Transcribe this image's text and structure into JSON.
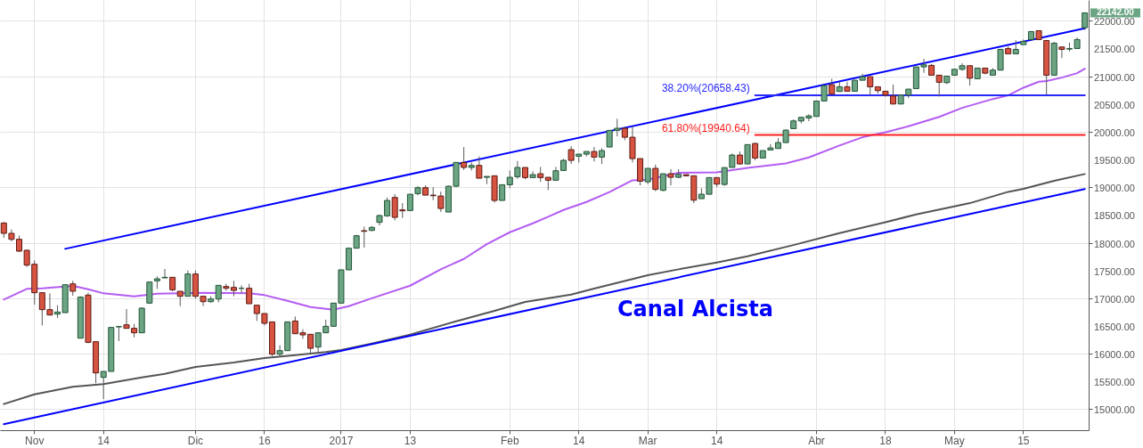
{
  "chart_data": {
    "type": "candlestick",
    "categories": [
      null,
      null,
      null,
      null,
      "Nov",
      null,
      null,
      null,
      null,
      null,
      null,
      null,
      null,
      "14",
      null,
      null,
      null,
      null,
      null,
      null,
      null,
      null,
      null,
      null,
      null,
      "Dic",
      null,
      null,
      null,
      null,
      null,
      null,
      null,
      null,
      "16",
      null,
      null,
      null,
      null,
      null,
      null,
      null,
      null,
      null,
      "2017",
      null,
      null,
      null,
      null,
      null,
      null,
      null,
      null,
      "13",
      null,
      null,
      null,
      null,
      null,
      null,
      null,
      null,
      null,
      null,
      null,
      null,
      "Feb",
      null,
      null,
      null,
      null,
      null,
      null,
      null,
      null,
      "14",
      null,
      null,
      null,
      null,
      null,
      null,
      null,
      null,
      "Mar",
      null,
      null,
      null,
      null,
      null,
      null,
      null,
      null,
      "14",
      null,
      null,
      null,
      null,
      null,
      null,
      null,
      null,
      null,
      null,
      null,
      null,
      "Abr",
      null,
      null,
      null,
      null,
      null,
      null,
      null,
      null,
      "18",
      null,
      null,
      null,
      null,
      null,
      null,
      null,
      null,
      "May",
      null,
      null,
      null,
      null,
      null,
      null,
      null,
      null,
      "15",
      null,
      null,
      null,
      null,
      null,
      null,
      null,
      null
    ],
    "ohlc": [
      [
        18356,
        18372,
        18089,
        18169
      ],
      [
        18169,
        18238,
        18024,
        18062
      ],
      [
        18062,
        18131,
        17832,
        17848
      ],
      [
        17864,
        17875,
        17564,
        17596
      ],
      [
        17612,
        17682,
        16885,
        17099
      ],
      [
        17099,
        17099,
        16510,
        16794
      ],
      [
        16794,
        17088,
        16687,
        16698
      ],
      [
        16714,
        16874,
        16644,
        16751
      ],
      [
        16740,
        17243,
        16740,
        17243
      ],
      [
        17259,
        17313,
        17045,
        17126
      ],
      [
        16280,
        17035,
        16280,
        17019
      ],
      [
        17056,
        17099,
        16189,
        16205
      ],
      [
        16216,
        16216,
        15467,
        15654
      ],
      [
        15574,
        15681,
        15183,
        15681
      ],
      [
        15681,
        16473,
        15681,
        16473
      ],
      [
        16484,
        16489,
        16226,
        16489
      ],
      [
        16521,
        16805,
        16457,
        16457
      ],
      [
        16457,
        16537,
        16296,
        16377
      ],
      [
        16377,
        16832,
        16377,
        16821
      ],
      [
        16912,
        17291,
        16912,
        17291
      ],
      [
        17313,
        17393,
        17168,
        17350
      ],
      [
        17366,
        17527,
        17366,
        17377
      ],
      [
        17377,
        17377,
        17125,
        17152
      ],
      [
        17125,
        17125,
        16858,
        17035
      ],
      [
        17035,
        17500,
        17035,
        17436
      ],
      [
        17436,
        17500,
        16992,
        17035
      ],
      [
        17035,
        17035,
        16858,
        16938
      ],
      [
        16938,
        17035,
        16922,
        16986
      ],
      [
        16986,
        17232,
        16927,
        17232
      ],
      [
        17211,
        17259,
        17136,
        17179
      ],
      [
        17195,
        17313,
        17035,
        17141
      ],
      [
        17179,
        17232,
        17088,
        17179
      ],
      [
        17179,
        17259,
        16901,
        16901
      ],
      [
        16874,
        16874,
        16590,
        16724
      ],
      [
        16724,
        16724,
        16510,
        16548
      ],
      [
        16574,
        16574,
        15959,
        15991
      ],
      [
        15991,
        16152,
        15949,
        16055
      ],
      [
        16055,
        16574,
        16055,
        16574
      ],
      [
        16590,
        16671,
        16360,
        16360
      ],
      [
        16377,
        16441,
        16270,
        16339
      ],
      [
        16350,
        16350,
        16018,
        16098
      ],
      [
        16120,
        16377,
        16029,
        16377
      ],
      [
        16377,
        16612,
        16377,
        16494
      ],
      [
        16494,
        16912,
        16494,
        16912
      ],
      [
        16912,
        17511,
        16912,
        17511
      ],
      [
        17511,
        17901,
        17511,
        17901
      ],
      [
        17901,
        18142,
        17901,
        18126
      ],
      [
        18217,
        18292,
        17912,
        18206
      ],
      [
        18222,
        18302,
        18206,
        18276
      ],
      [
        18367,
        18506,
        18313,
        18490
      ],
      [
        18484,
        18815,
        18467,
        18762
      ],
      [
        18815,
        18874,
        18403,
        18457
      ],
      [
        18591,
        18714,
        18446,
        18575
      ],
      [
        18580,
        18874,
        18580,
        18874
      ],
      [
        18885,
        19018,
        18853,
        18992
      ],
      [
        18992,
        19034,
        18858,
        18858
      ],
      [
        18858,
        19002,
        18767,
        18847
      ],
      [
        18842,
        18922,
        18553,
        18617
      ],
      [
        18553,
        19029,
        18553,
        19018
      ],
      [
        19018,
        19447,
        19002,
        19447
      ],
      [
        19447,
        19725,
        19313,
        19356
      ],
      [
        19356,
        19447,
        19302,
        19393
      ],
      [
        19393,
        19554,
        19163,
        19163
      ],
      [
        19179,
        19195,
        19056,
        19195
      ],
      [
        19206,
        19206,
        18724,
        18762
      ],
      [
        18762,
        19045,
        18762,
        19045
      ],
      [
        19045,
        19302,
        18981,
        19179
      ],
      [
        19190,
        19473,
        19152,
        19356
      ],
      [
        19356,
        19356,
        19142,
        19174
      ],
      [
        19174,
        19286,
        19174,
        19227
      ],
      [
        19243,
        19366,
        19099,
        19174
      ],
      [
        19179,
        19179,
        18949,
        19126
      ],
      [
        19126,
        19366,
        19126,
        19297
      ],
      [
        19302,
        19511,
        19302,
        19484
      ],
      [
        19677,
        19741,
        19420,
        19484
      ],
      [
        19559,
        19597,
        19447,
        19597
      ],
      [
        19596,
        19644,
        19554,
        19644
      ],
      [
        19644,
        19725,
        19463,
        19543
      ],
      [
        19543,
        19703,
        19420,
        19660
      ],
      [
        19725,
        20024,
        19725,
        20024
      ],
      [
        20024,
        20233,
        19917,
        20062
      ],
      [
        20062,
        20088,
        19848,
        19901
      ],
      [
        19901,
        20099,
        19447,
        19516
      ],
      [
        19516,
        19516,
        19034,
        19109
      ],
      [
        19098,
        19340,
        19056,
        19340
      ],
      [
        19340,
        19409,
        18928,
        18961
      ],
      [
        18944,
        19243,
        18928,
        19243
      ],
      [
        19243,
        19324,
        19034,
        19179
      ],
      [
        19179,
        19324,
        19163,
        19233
      ],
      [
        19227,
        19233,
        19206,
        19206
      ],
      [
        19206,
        19206,
        18714,
        18767
      ],
      [
        18794,
        18981,
        18794,
        18874
      ],
      [
        18874,
        19174,
        18874,
        19174
      ],
      [
        19174,
        19174,
        19002,
        19056
      ],
      [
        19050,
        19354,
        19024,
        19354
      ],
      [
        19356,
        19607,
        19356,
        19580
      ],
      [
        19580,
        19644,
        19404,
        19420
      ],
      [
        19420,
        19768,
        19420,
        19768
      ],
      [
        19788,
        19805,
        19484,
        19526
      ],
      [
        19526,
        19660,
        19526,
        19660
      ],
      [
        19671,
        19778,
        19671,
        19708
      ],
      [
        19698,
        19885,
        19698,
        19805
      ],
      [
        19805,
        20045,
        19805,
        20029
      ],
      [
        20056,
        20222,
        20056,
        20195
      ],
      [
        20195,
        20259,
        20152,
        20259
      ],
      [
        20248,
        20313,
        20190,
        20286
      ],
      [
        20275,
        20554,
        20275,
        20554
      ],
      [
        20554,
        20832,
        20554,
        20832
      ],
      [
        20848,
        20955,
        20677,
        20677
      ],
      [
        20725,
        20901,
        20725,
        20811
      ],
      [
        20811,
        20901,
        20730,
        20730
      ],
      [
        20730,
        20928,
        20730,
        20928
      ],
      [
        20928,
        21046,
        20928,
        20992
      ],
      [
        20992,
        20992,
        20660,
        20810
      ],
      [
        20810,
        20810,
        20687,
        20741
      ],
      [
        20730,
        20730,
        20633,
        20660
      ],
      [
        20644,
        20848,
        20500,
        20500
      ],
      [
        20500,
        20660,
        20500,
        20660
      ],
      [
        20660,
        20768,
        20607,
        20768
      ],
      [
        20778,
        21169,
        20778,
        21169
      ],
      [
        21169,
        21313,
        21062,
        21206
      ],
      [
        21196,
        21222,
        21019,
        21019
      ],
      [
        21019,
        21019,
        20634,
        20891
      ],
      [
        20885,
        21002,
        20858,
        21002
      ],
      [
        21019,
        21125,
        21019,
        21125
      ],
      [
        21125,
        21233,
        21099,
        21190
      ],
      [
        21190,
        21190,
        20831,
        20965
      ],
      [
        20955,
        21147,
        20955,
        21147
      ],
      [
        21147,
        21147,
        21035,
        21056
      ],
      [
        21019,
        21147,
        21019,
        21110
      ],
      [
        21110,
        21484,
        21110,
        21484
      ],
      [
        21500,
        21543,
        21404,
        21404
      ],
      [
        21404,
        21650,
        21404,
        21484
      ],
      [
        21570,
        21661,
        21570,
        21628
      ],
      [
        21661,
        21805,
        21661,
        21805
      ],
      [
        21821,
        21821,
        21650,
        21661
      ],
      [
        21644,
        21644,
        20671,
        21019
      ],
      [
        21019,
        21618,
        21019,
        21596
      ],
      [
        21527,
        21527,
        21329,
        21484
      ],
      [
        21489,
        21607,
        21447,
        21500
      ],
      [
        21500,
        21698,
        21500,
        21661
      ],
      [
        21875,
        22142,
        21832,
        22142
      ]
    ],
    "series": [
      {
        "type": "line",
        "color": "#b35cf2",
        "values": [
          16976,
          null,
          null,
          17168,
          null,
          17179,
          null,
          null,
          null,
          17222,
          null,
          17163,
          null,
          17088,
          null,
          null,
          null,
          17035,
          null,
          null,
          17083,
          null,
          null,
          17088,
          null,
          null,
          17099,
          null,
          null,
          null,
          null,
          null,
          17088,
          null,
          17056,
          null,
          null,
          16954,
          null,
          null,
          16842,
          null,
          null,
          16794,
          null,
          16858,
          null,
          null,
          17000,
          null,
          null,
          null,
          null,
          17226,
          null,
          null,
          null,
          17521,
          null,
          null,
          17708,
          null,
          null,
          17975,
          null,
          null,
          18189,
          null,
          null,
          18350,
          null,
          18467,
          null,
          18590,
          null,
          null,
          18735,
          null,
          null,
          18912,
          null,
          null,
          19125,
          null,
          19136,
          null,
          null,
          null,
          19259,
          null,
          null,
          null,
          null,
          19270,
          null,
          null,
          null,
          19350,
          null,
          null,
          null,
          null,
          19430,
          null,
          null,
          19537,
          null,
          null,
          null,
          19751,
          null,
          null,
          19901,
          null,
          null,
          19992,
          null,
          null,
          20099,
          null,
          null,
          null,
          20268,
          null,
          null,
          20430,
          null,
          null,
          null,
          20590,
          null,
          20655,
          null,
          20794,
          null,
          20901,
          20912,
          null,
          20976,
          null,
          21056,
          21137
        ]
      },
      {
        "type": "line",
        "color": "#555555",
        "values": [
          15093,
          null,
          null,
          null,
          15269,
          null,
          null,
          null,
          null,
          15403,
          null,
          null,
          null,
          15451,
          null,
          null,
          null,
          null,
          15574,
          null,
          null,
          15638,
          null,
          null,
          null,
          15761,
          null,
          null,
          null,
          null,
          15841,
          null,
          null,
          null,
          15922,
          null,
          null,
          null,
          15975,
          null,
          null,
          null,
          16029,
          null,
          16066,
          null,
          null,
          null,
          16183,
          null,
          null,
          null,
          null,
          16344,
          null,
          null,
          null,
          null,
          null,
          16585,
          null,
          null,
          null,
          null,
          16772,
          null,
          null,
          null,
          16933,
          null,
          null,
          null,
          null,
          null,
          17066,
          null,
          null,
          17173,
          null,
          null,
          null,
          null,
          null,
          null,
          17414,
          null,
          null,
          null,
          17521,
          null,
          null,
          null,
          null,
          17644,
          null,
          null,
          null,
          17755,
          null,
          null,
          null,
          null,
          null,
          17958,
          null,
          null,
          null,
          null,
          null,
          18173,
          null,
          null,
          null,
          null,
          null,
          18371,
          null,
          null,
          null,
          18510,
          null,
          null,
          null,
          18628,
          null,
          null,
          18713,
          null,
          null,
          null,
          null,
          18917,
          null,
          18970,
          null,
          null,
          null,
          19115,
          null,
          null,
          null,
          19238
        ]
      },
      {
        "type": "line",
        "color": "#0000ff",
        "values": [
          null,
          null,
          null,
          null,
          null,
          null,
          null,
          null,
          17890,
          null,
          null,
          null,
          null,
          null,
          null,
          null,
          null,
          null,
          null,
          null,
          null,
          null,
          null,
          null,
          null,
          null,
          null,
          null,
          null,
          null,
          null,
          null,
          null,
          null,
          null,
          null,
          null,
          null,
          null,
          null,
          null,
          null,
          null,
          null,
          null,
          null,
          null,
          null,
          null,
          null,
          null,
          null,
          null,
          null,
          null,
          null,
          null,
          null,
          null,
          null,
          null,
          null,
          null,
          null,
          null,
          null,
          null,
          null,
          null,
          null,
          null,
          null,
          null,
          null,
          null,
          null,
          null,
          null,
          null,
          null,
          null,
          null,
          null,
          null,
          null,
          null,
          null,
          null,
          null,
          null,
          null,
          null,
          null,
          null,
          null,
          null,
          null,
          null,
          null,
          null,
          null,
          null,
          null,
          null,
          null,
          null,
          null,
          null,
          null,
          null,
          null,
          null,
          null,
          null,
          null,
          null,
          null,
          null,
          null,
          null,
          null,
          null,
          null,
          null,
          null,
          null,
          null,
          null,
          null,
          null,
          null,
          null,
          null,
          null,
          null,
          null,
          null,
          null,
          null,
          null,
          null,
          21864
        ]
      },
      {
        "type": "line",
        "color": "#0000ff",
        "values": [
          14730,
          null,
          null,
          null,
          null,
          null,
          null,
          null,
          null,
          null,
          null,
          null,
          null,
          null,
          null,
          null,
          null,
          null,
          null,
          null,
          null,
          null,
          null,
          null,
          null,
          null,
          null,
          null,
          null,
          null,
          null,
          null,
          null,
          null,
          null,
          null,
          null,
          null,
          null,
          null,
          null,
          null,
          null,
          null,
          null,
          null,
          null,
          null,
          null,
          null,
          null,
          null,
          null,
          null,
          null,
          null,
          null,
          null,
          null,
          null,
          null,
          null,
          null,
          null,
          null,
          null,
          null,
          null,
          null,
          null,
          null,
          null,
          null,
          null,
          null,
          null,
          null,
          null,
          null,
          null,
          null,
          null,
          null,
          null,
          null,
          null,
          null,
          null,
          null,
          null,
          null,
          null,
          null,
          null,
          null,
          null,
          null,
          null,
          null,
          null,
          null,
          null,
          null,
          null,
          null,
          null,
          null,
          null,
          null,
          null,
          null,
          null,
          null,
          null,
          null,
          null,
          null,
          null,
          null,
          null,
          null,
          null,
          null,
          null,
          null,
          null,
          null,
          null,
          null,
          null,
          null,
          null,
          null,
          null,
          null,
          null,
          null,
          null,
          null,
          null,
          null,
          18969
        ]
      },
      {
        "type": "line",
        "name": "38.20%(20658.43)",
        "color": "#2828ff",
        "values": [
          null,
          null,
          null,
          null,
          null,
          null,
          null,
          null,
          null,
          null,
          null,
          null,
          null,
          null,
          null,
          null,
          null,
          null,
          null,
          null,
          null,
          null,
          null,
          null,
          null,
          null,
          null,
          null,
          null,
          null,
          null,
          null,
          null,
          null,
          null,
          null,
          null,
          null,
          null,
          null,
          null,
          null,
          null,
          null,
          null,
          null,
          null,
          null,
          null,
          null,
          null,
          null,
          null,
          null,
          null,
          null,
          null,
          null,
          null,
          null,
          null,
          null,
          null,
          null,
          null,
          null,
          null,
          null,
          null,
          null,
          null,
          null,
          null,
          null,
          null,
          null,
          null,
          null,
          null,
          null,
          null,
          null,
          null,
          null,
          null,
          null,
          null,
          null,
          null,
          null,
          null,
          null,
          null,
          null,
          null,
          null,
          null,
          null,
          20658.43,
          null,
          null,
          null,
          null,
          null,
          null,
          null,
          null,
          null,
          null,
          null,
          null,
          null,
          null,
          null,
          null,
          null,
          null,
          null,
          null,
          null,
          null,
          null,
          null,
          null,
          null,
          null,
          null,
          null,
          null,
          null,
          null,
          null,
          null,
          null,
          null,
          null,
          null,
          null,
          null,
          null,
          null,
          20658.43
        ]
      },
      {
        "type": "line",
        "name": "61.80%(19940.64)",
        "color": "#ff2020",
        "values": [
          null,
          null,
          null,
          null,
          null,
          null,
          null,
          null,
          null,
          null,
          null,
          null,
          null,
          null,
          null,
          null,
          null,
          null,
          null,
          null,
          null,
          null,
          null,
          null,
          null,
          null,
          null,
          null,
          null,
          null,
          null,
          null,
          null,
          null,
          null,
          null,
          null,
          null,
          null,
          null,
          null,
          null,
          null,
          null,
          null,
          null,
          null,
          null,
          null,
          null,
          null,
          null,
          null,
          null,
          null,
          null,
          null,
          null,
          null,
          null,
          null,
          null,
          null,
          null,
          null,
          null,
          null,
          null,
          null,
          null,
          null,
          null,
          null,
          null,
          null,
          null,
          null,
          null,
          null,
          null,
          null,
          null,
          null,
          null,
          null,
          null,
          null,
          null,
          null,
          null,
          null,
          null,
          null,
          null,
          null,
          null,
          null,
          null,
          19940.64,
          null,
          null,
          null,
          null,
          null,
          null,
          null,
          null,
          null,
          null,
          null,
          null,
          null,
          null,
          null,
          null,
          null,
          null,
          null,
          null,
          null,
          null,
          null,
          null,
          null,
          null,
          null,
          null,
          null,
          null,
          null,
          null,
          null,
          null,
          null,
          null,
          null,
          null,
          null,
          null,
          null,
          null,
          19940.64
        ]
      }
    ],
    "ylim": [
      14622,
      22374
    ],
    "yticks": [
      {
        "value": 15000,
        "label": "15000.00"
      },
      {
        "value": 15500,
        "label": "15500.00"
      },
      {
        "value": 16000,
        "label": "16000.00"
      },
      {
        "value": 16500,
        "label": "16500.00"
      },
      {
        "value": 17000,
        "label": "17000.00"
      },
      {
        "value": 17500,
        "label": "17500.00"
      },
      {
        "value": 18000,
        "label": "18000.00"
      },
      {
        "value": 18500,
        "label": "18500.00"
      },
      {
        "value": 19000,
        "label": "19000.00"
      },
      {
        "value": 19500,
        "label": "19500.00"
      },
      {
        "value": 20000,
        "label": "20000.00"
      },
      {
        "value": 20500,
        "label": "20500.00"
      },
      {
        "value": 21000,
        "label": "21000.00"
      },
      {
        "value": 21500,
        "label": "21500.00"
      },
      {
        "value": 22000,
        "label": "22000.00"
      }
    ],
    "grid": true,
    "annotations": [
      "Canal Alcista",
      "22142.00"
    ]
  }
}
